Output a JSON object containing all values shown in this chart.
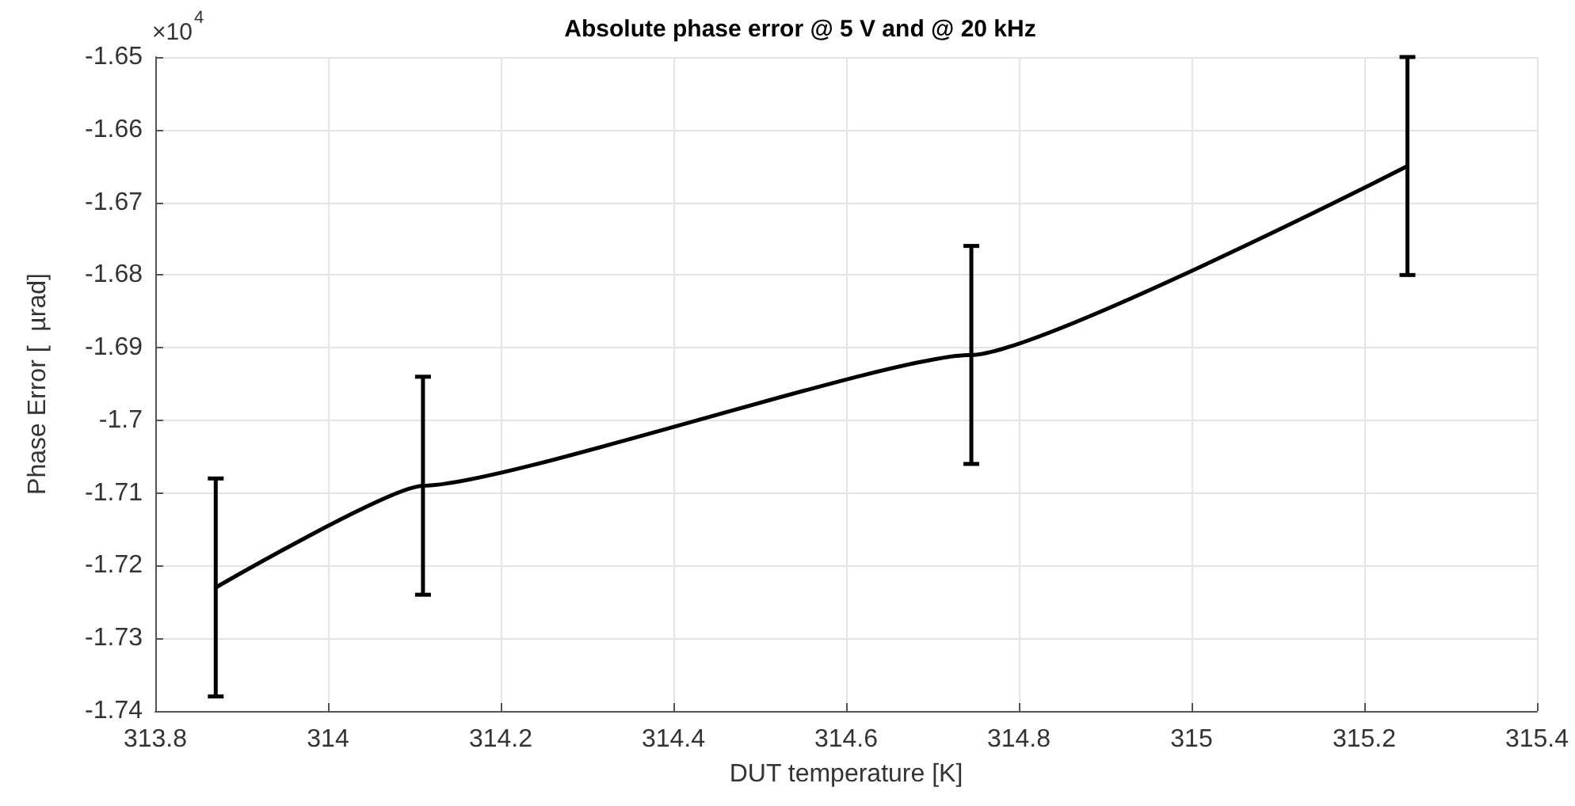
{
  "chart_data": {
    "type": "line",
    "title": "Absolute phase error @ 5 V and @ 20 kHz",
    "xlabel": "DUT temperature [K]",
    "ylabel": "Phase Error [  µrad]",
    "x": [
      313.87,
      314.11,
      314.745,
      315.25
    ],
    "series": [
      {
        "color": "#000000",
        "values": [
          -1.723,
          -1.709,
          -1.691,
          -1.665
        ],
        "errors": [
          0.015,
          0.015,
          0.015,
          0.015
        ]
      }
    ],
    "xlim": [
      313.8,
      315.4
    ],
    "xticks": [
      313.8,
      314,
      314.2,
      314.4,
      314.6,
      314.8,
      315,
      315.2,
      315.4
    ],
    "ylim": [
      -1.74,
      -1.65
    ],
    "yticks": [
      -1.74,
      -1.73,
      -1.72,
      -1.71,
      -1.7,
      -1.69,
      -1.68,
      -1.67,
      -1.66,
      -1.65
    ],
    "annotations": [
      "×10$^{4}$"
    ],
    "grid": true,
    "marker": "none",
    "line_style": "solid"
  }
}
